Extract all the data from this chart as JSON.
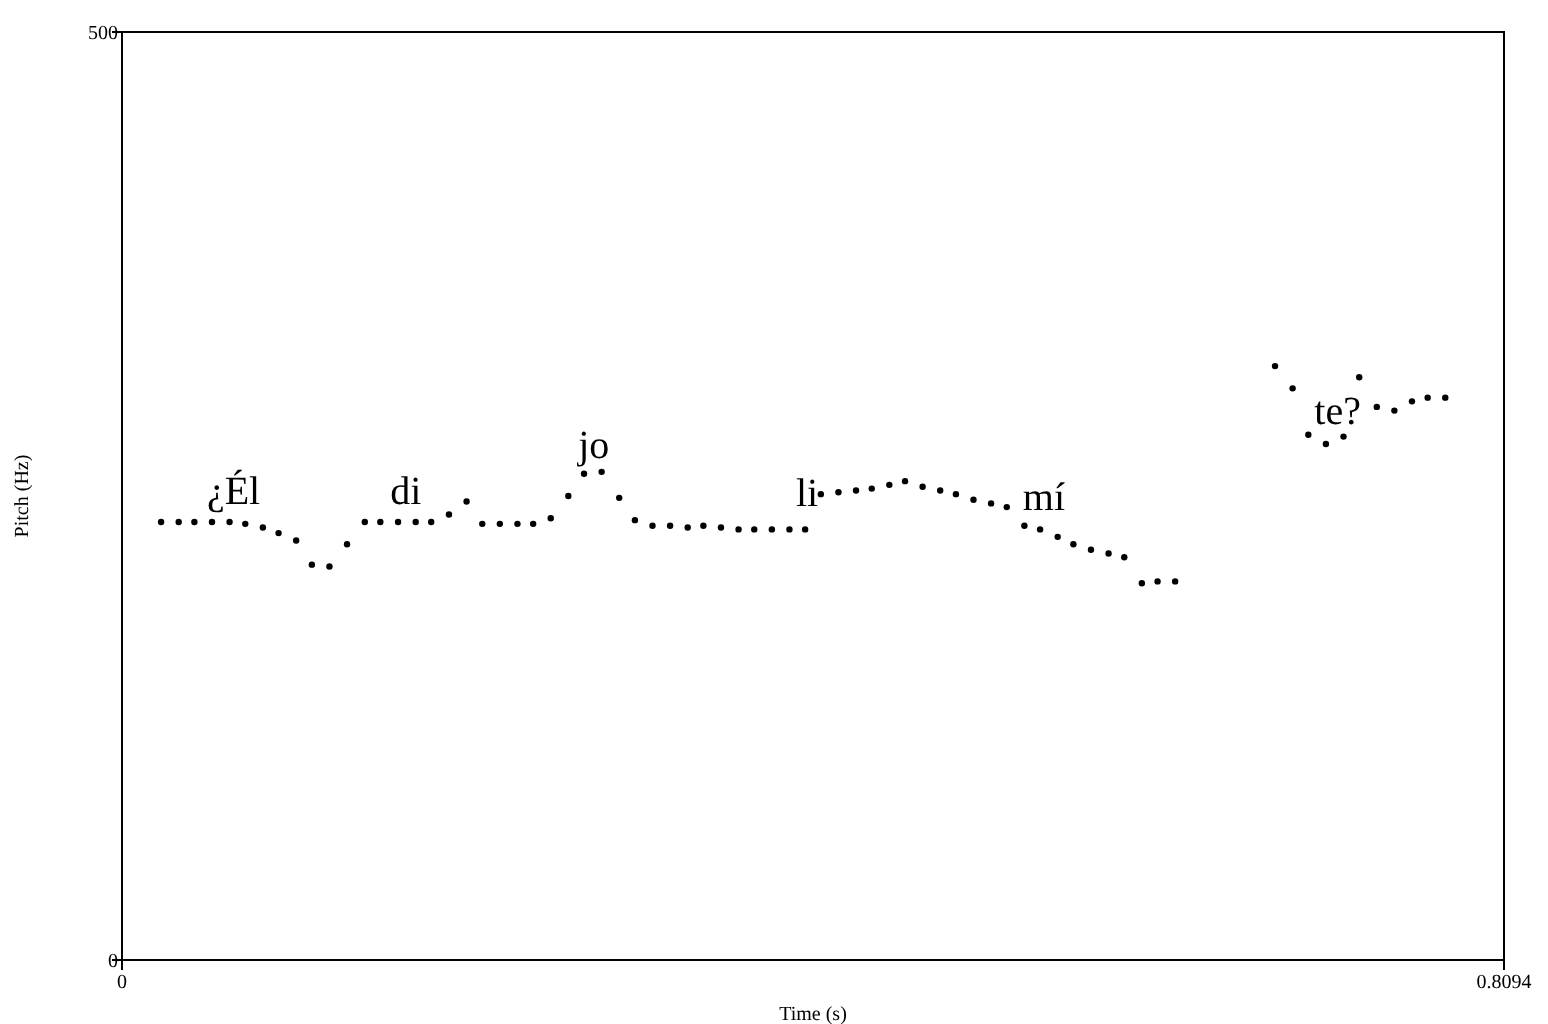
{
  "chart_data": {
    "type": "scatter",
    "xlabel": "Time (s)",
    "ylabel": "Pitch (Hz)",
    "xlim": [
      0,
      0.8094
    ],
    "ylim": [
      0,
      500
    ],
    "xticks": [
      0,
      0.8094
    ],
    "yticks": [
      0,
      500
    ],
    "marker": "circle",
    "series": [
      {
        "color": "#000000",
        "x": [
          0.0229,
          0.0332,
          0.0424,
          0.0527,
          0.063,
          0.0722,
          0.0825,
          0.0917,
          0.102,
          0.1112,
          0.1215,
          0.1318,
          0.1422,
          0.1513,
          0.1617,
          0.172,
          0.1811,
          0.1915,
          0.2018,
          0.211,
          0.2213,
          0.2316,
          0.2408,
          0.2511,
          0.2614,
          0.2706,
          0.2809,
          0.2912,
          0.3004,
          0.3107,
          0.321,
          0.3313,
          0.3405,
          0.3508,
          0.3611,
          0.3703,
          0.3806,
          0.3909,
          0.4001,
          0.4093,
          0.4196,
          0.4299,
          0.4391,
          0.4494,
          0.4586,
          0.4689,
          0.4792,
          0.4884,
          0.4987,
          0.509,
          0.5182,
          0.5285,
          0.5377,
          0.548,
          0.5572,
          0.5675,
          0.5778,
          0.587,
          0.5973,
          0.6065,
          0.6168,
          0.6753,
          0.6856,
          0.6948,
          0.7051,
          0.7154,
          0.7246,
          0.7349,
          0.7452,
          0.7555,
          0.7647,
          0.775
        ],
        "values": [
          236,
          236,
          236,
          236,
          236,
          235,
          233,
          230,
          226,
          213,
          212,
          224,
          236,
          236,
          236,
          236,
          236,
          240,
          247,
          235,
          235,
          235,
          235,
          238,
          250,
          262,
          263,
          249,
          237,
          234,
          234,
          233,
          234,
          233,
          232,
          232,
          232,
          232,
          232,
          251,
          252,
          253,
          254,
          256,
          258,
          255,
          253,
          251,
          248,
          246,
          244,
          234,
          232,
          228,
          224,
          221,
          219,
          217,
          203,
          204,
          204,
          320,
          308,
          283,
          278,
          282,
          314,
          298,
          296,
          301,
          303,
          303
        ]
      }
    ],
    "annotations": [
      "¿Él",
      "di",
      "jo",
      "li",
      "mí",
      "te?"
    ]
  }
}
